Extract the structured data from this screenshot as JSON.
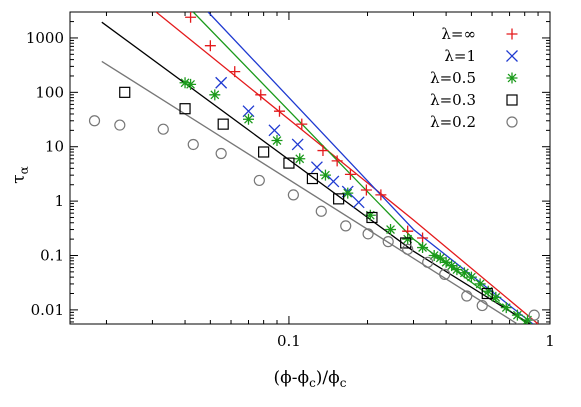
{
  "chart_data": {
    "type": "scatter",
    "title": "",
    "xlabel": "(ϕ-ϕc)/ϕc",
    "xlabel_parts": {
      "a": "(ϕ-ϕ",
      "sub1": "c",
      "b": ")/ϕ",
      "sub2": "c"
    },
    "ylabel": "τα",
    "ylabel_parts": {
      "main": "τ",
      "sub": "α"
    },
    "xscale": "log",
    "yscale": "log",
    "xlim": [
      0.0145,
      1.0
    ],
    "ylim": [
      0.0055,
      3000
    ],
    "xticks": [
      {
        "value": 0.1,
        "label": "0.1"
      },
      {
        "value": 1,
        "label": "1"
      }
    ],
    "yticks": [
      {
        "value": 0.01,
        "label": "0.01"
      },
      {
        "value": 0.1,
        "label": "0.1"
      },
      {
        "value": 1,
        "label": "1"
      },
      {
        "value": 10,
        "label": "10"
      },
      {
        "value": 100,
        "label": "100"
      },
      {
        "value": 1000,
        "label": "1000"
      }
    ],
    "legend_position": "top-right",
    "series": [
      {
        "name": "λ=∞",
        "color": "#e41a1c",
        "marker": "plus",
        "x": [
          0.042,
          0.05,
          0.062,
          0.078,
          0.092,
          0.112,
          0.135,
          0.153,
          0.172,
          0.198,
          0.225,
          0.285,
          0.325
        ],
        "y": [
          2400,
          720,
          240,
          90,
          45,
          26,
          8.5,
          5.5,
          3.1,
          1.6,
          1.3,
          0.28,
          0.21
        ],
        "fit": [
          [
            0.031,
            3000
          ],
          [
            0.3,
            0.45
          ],
          [
            0.9,
            0.0055
          ]
        ]
      },
      {
        "name": "λ=1",
        "color": "#1f3ad1",
        "marker": "x",
        "x": [
          0.055,
          0.07,
          0.088,
          0.108,
          0.128,
          0.148,
          0.168,
          0.185
        ],
        "y": [
          150,
          45,
          20,
          11,
          4.2,
          2.3,
          1.5,
          0.95
        ],
        "fit": [
          [
            0.049,
            3000
          ],
          [
            0.3,
            0.3
          ],
          [
            0.86,
            0.0055
          ]
        ]
      },
      {
        "name": "λ=0.5",
        "color": "#1b9a1b",
        "marker": "star",
        "x": [
          0.04,
          0.042,
          0.052,
          0.07,
          0.09,
          0.11,
          0.138,
          0.168,
          0.205,
          0.245,
          0.285,
          0.325,
          0.36,
          0.38,
          0.4,
          0.42,
          0.44,
          0.47,
          0.5,
          0.54,
          0.58,
          0.62,
          0.68,
          0.75,
          0.82
        ],
        "y": [
          150,
          140,
          90,
          32,
          13,
          6,
          3.0,
          1.4,
          0.55,
          0.3,
          0.2,
          0.14,
          0.1,
          0.09,
          0.075,
          0.065,
          0.055,
          0.048,
          0.04,
          0.03,
          0.022,
          0.017,
          0.011,
          0.008,
          0.0065
        ],
        "fit": [
          [
            0.043,
            3000
          ],
          [
            0.3,
            0.2
          ],
          [
            0.82,
            0.0055
          ]
        ]
      },
      {
        "name": "λ=0.3",
        "color": "#000000",
        "marker": "square",
        "x": [
          0.0235,
          0.04,
          0.056,
          0.08,
          0.1,
          0.123,
          0.155,
          0.208,
          0.28,
          0.575
        ],
        "y": [
          100,
          50,
          26,
          8,
          5,
          2.6,
          1.1,
          0.5,
          0.17,
          0.02
        ],
        "fit": [
          [
            0.0192,
            1950
          ],
          [
            0.3,
            0.12
          ],
          [
            0.84,
            0.0055
          ]
        ]
      },
      {
        "name": "λ=0.2",
        "color": "#777777",
        "marker": "circle",
        "x": [
          0.018,
          0.0225,
          0.033,
          0.043,
          0.055,
          0.077,
          0.104,
          0.133,
          0.165,
          0.201,
          0.24,
          0.285,
          0.34,
          0.395,
          0.48,
          0.55,
          0.87
        ],
        "y": [
          30,
          25,
          21,
          11,
          7.5,
          2.4,
          1.3,
          0.65,
          0.35,
          0.25,
          0.18,
          0.13,
          0.075,
          0.045,
          0.018,
          0.012,
          0.008
        ],
        "fit": [
          [
            0.0192,
            370
          ],
          [
            0.75,
            0.0055
          ]
        ]
      }
    ]
  }
}
